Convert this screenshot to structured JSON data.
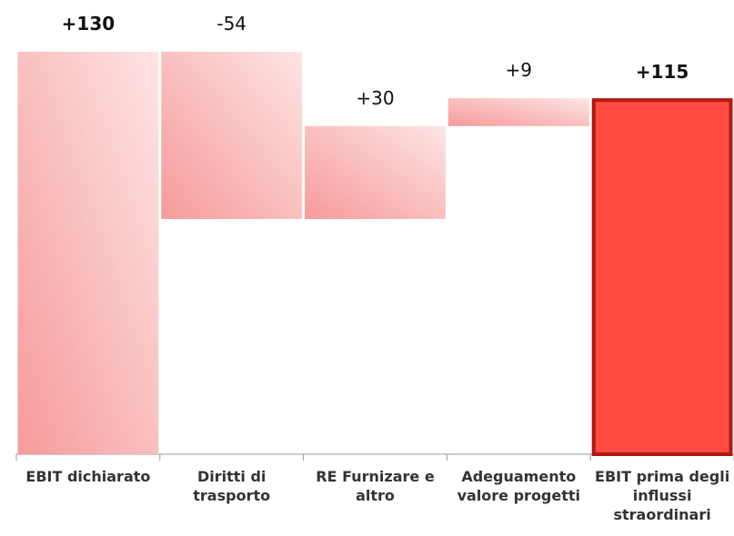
{
  "chart_data": {
    "type": "waterfall",
    "categories": [
      "EBIT dichiarato",
      "Diritti di trasporto",
      "RE Furnizare e altro",
      "Adeguamento valore progetti",
      "EBIT prima degli influssi straordinari"
    ],
    "values": [
      130,
      -54,
      30,
      9,
      115
    ],
    "value_labels": [
      "+130",
      "-54",
      "+30",
      "+9",
      "+115"
    ],
    "is_total": [
      false,
      false,
      false,
      false,
      true
    ],
    "color": "#f79a9a",
    "total_color": "#ff4a40",
    "ylim": [
      0,
      130
    ]
  }
}
